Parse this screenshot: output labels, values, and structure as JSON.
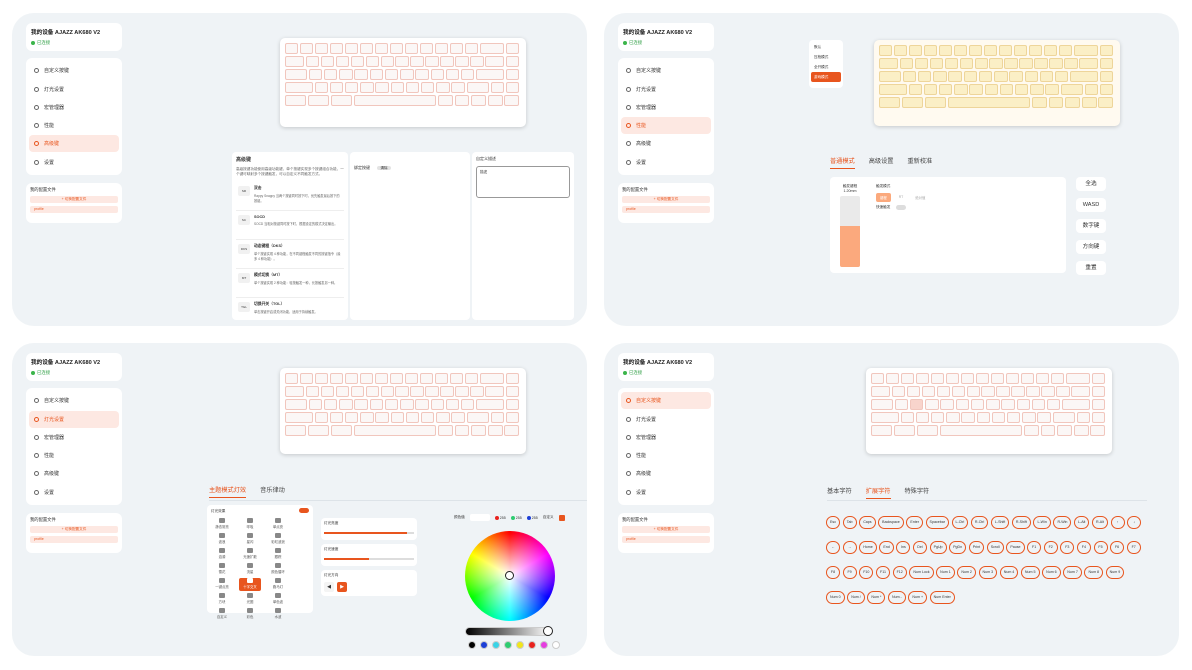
{
  "device": {
    "name": "我的设备 AJAZZ AK680 V2",
    "status": "已连接"
  },
  "nav": [
    "自定义按键",
    "灯光设置",
    "宏管理器",
    "性能",
    "高级键",
    "设置"
  ],
  "config": {
    "title": "我的配置文件",
    "selected": "+ 切换配置文件",
    "profile": "profile"
  },
  "p1": {
    "adv_title": "高级键",
    "adv_desc": "高级按键功能使用高级功能键，单个按键实现多个按键组合功能，一个键可映射多个按键触发，可以自定义不同触发方式。",
    "items": [
      {
        "icon": "SR",
        "title": "双击",
        "desc": "Rappy Snappy 当两个按键同时按下时，优先触发最后按下的按键。"
      },
      {
        "icon": "SC",
        "title": "SOCD",
        "desc": "SOCD 当相对按键同时按下时，根据设定的模式决定输出。"
      },
      {
        "icon": "DKS",
        "title": "动态键程（DKS）",
        "desc": "单个按键实现 4 种功能，在不同键程触发不同的按键指令（最多 4 种功能）。"
      },
      {
        "icon": "MT",
        "title": "模式切换（MT）",
        "desc": "单个按键实现 2 种功能：轻按触发一种，长按触发另一种。"
      },
      {
        "icon": "TGL",
        "title": "切换开关（TGL）",
        "desc": "单击按键开启或关闭功能，适用于持续触发。"
      }
    ],
    "bind_label": "绑定按键",
    "bind_btn": "清除",
    "desc_label": "自定义描述",
    "desc_value": "描述"
  },
  "p2": {
    "menu": [
      "默认",
      "压枪模式",
      "全开模式",
      "游戏模式"
    ],
    "tabs": [
      "普通模式",
      "高级设置",
      "重新校准"
    ],
    "travel": {
      "label": "触发键程",
      "value": "1.20mm",
      "fill_fraction": 0.58
    },
    "mode_label": "触发模式",
    "modes": [
      "键程",
      "RT",
      "绝对值"
    ],
    "rapid_label": "快速触发",
    "buttons": [
      "全选",
      "WASD",
      "数字键",
      "方向键",
      "重置"
    ]
  },
  "p3": {
    "tabs": [
      "主题模式灯效",
      "音乐律动"
    ],
    "effects_label": "灯光效果",
    "effects": [
      "静态常亮",
      "呼吸",
      "单点亮",
      "波浪",
      "星闪",
      "彩虹波浪",
      "涟漪",
      "光速扩散",
      "跟踪",
      "雪花",
      "流星",
      "颜色循环",
      "一键点亮",
      "十字交叉",
      "跑马灯",
      "方块",
      "光圈",
      "单色波",
      "自定义",
      "彩色",
      "水波"
    ],
    "brightness_label": "灯光亮度",
    "brightness": 0.92,
    "speed_label": "灯光速度",
    "speed": 0.5,
    "direction_label": "灯光方向",
    "rgb": {
      "label": "颜色值",
      "r": "255",
      "g": "255",
      "b": "255",
      "custom": "自定义"
    },
    "swatches": [
      "#000000",
      "#1c3fd6",
      "#3ad3e6",
      "#2ecc71",
      "#f1e51c",
      "#e8221e",
      "#e53ee0",
      "#ffffff"
    ],
    "colors": {
      "accent": "#e8551e"
    }
  },
  "p4": {
    "tabs": [
      "基本字符",
      "扩展字符",
      "特殊字符"
    ],
    "keys": [
      "Esc",
      "Tab",
      "Caps",
      "Backspace",
      "Enter",
      "Spacebar",
      "L-Ctrl",
      "R-Ctrl",
      "L-Shift",
      "R-Shift",
      "L-Win",
      "R-Win",
      "L-Alt",
      "R-Alt",
      "↑",
      "↓",
      "←",
      "→",
      "Home",
      "End",
      "Ins",
      "Del",
      "PgUp",
      "PgDn",
      "Print",
      "Scroll",
      "Pause",
      "F1",
      "F2",
      "F3",
      "F4",
      "F5",
      "F6",
      "F7",
      "F8",
      "F9",
      "F10",
      "F11",
      "F12",
      "Num Lock",
      "Num 1",
      "Num 2",
      "Num 3",
      "Num 4",
      "Num 5",
      "Num 6",
      "Num 7",
      "Num 8",
      "Num 9",
      "Num 0",
      "Num /",
      "Num *",
      "Num -",
      "Num +",
      "Num Enter"
    ]
  }
}
